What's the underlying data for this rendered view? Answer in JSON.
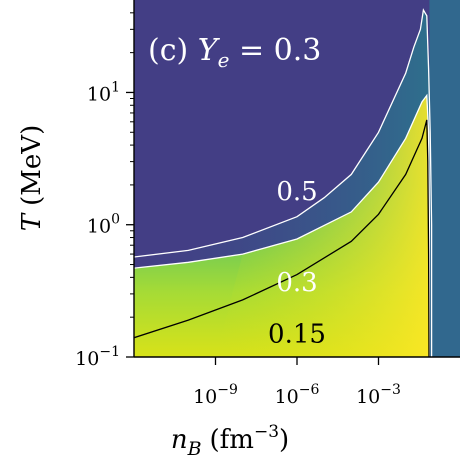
{
  "chart_data": {
    "type": "heatmap",
    "panel_label": "(c) Y_e = 0.3",
    "panel": {
      "prefix": "(c) ",
      "var": "Y",
      "sub": "e",
      "suffix": " = 0.3"
    },
    "xlabel": {
      "var": "n",
      "sub": "B",
      "unit": "(fm",
      "exp": "−3",
      "close": ")"
    },
    "ylabel": {
      "var": "T",
      "unit": "(MeV)"
    },
    "x_scale": "log",
    "y_scale": "log",
    "xlim": [
      1e-12,
      1.0
    ],
    "ylim": [
      0.1,
      50
    ],
    "xticks": [
      {
        "value": 1e-09,
        "base": "10",
        "exp": "−9"
      },
      {
        "value": 1e-06,
        "base": "10",
        "exp": "−6"
      },
      {
        "value": 0.001,
        "base": "10",
        "exp": "−3"
      }
    ],
    "yticks": [
      {
        "value": 0.1,
        "base": "10",
        "exp": "−1"
      },
      {
        "value": 1,
        "base": "10",
        "exp": "0"
      },
      {
        "value": 10,
        "base": "10",
        "exp": "1"
      }
    ],
    "colormap": "viridis",
    "contours": [
      {
        "level": 0.5,
        "label": "0.5",
        "color": "#ffffff",
        "label_at": [
          1e-06,
          1.8
        ],
        "points": [
          [
            1e-12,
            0.57
          ],
          [
            1e-10,
            0.64
          ],
          [
            1e-08,
            0.8
          ],
          [
            1e-06,
            1.15
          ],
          [
            1e-05,
            1.6
          ],
          [
            0.0001,
            2.4
          ],
          [
            0.001,
            5
          ],
          [
            0.01,
            14
          ],
          [
            0.02,
            22
          ],
          [
            0.035,
            30
          ],
          [
            0.045,
            42
          ],
          [
            0.06,
            38
          ],
          [
            0.07,
            15
          ],
          [
            0.08,
            5
          ],
          [
            0.09,
            1
          ],
          [
            0.09,
            0.1
          ]
        ]
      },
      {
        "level": 0.3,
        "label": "0.3",
        "color": "#ffffff",
        "label_at": [
          1e-06,
          0.37
        ],
        "points": [
          [
            1e-12,
            0.47
          ],
          [
            1e-10,
            0.52
          ],
          [
            1e-08,
            0.6
          ],
          [
            1e-06,
            0.78
          ],
          [
            0.0001,
            1.25
          ],
          [
            0.001,
            2.1
          ],
          [
            0.01,
            4.5
          ],
          [
            0.04,
            8.5
          ],
          [
            0.06,
            9.5
          ],
          [
            0.07,
            5
          ],
          [
            0.075,
            1
          ],
          [
            0.075,
            0.1
          ]
        ]
      },
      {
        "level": 0.15,
        "label": "0.15",
        "color": "#000000",
        "label_at": [
          1e-06,
          0.15
        ],
        "points": [
          [
            1e-12,
            0.14
          ],
          [
            1e-10,
            0.19
          ],
          [
            1e-08,
            0.27
          ],
          [
            1e-06,
            0.42
          ],
          [
            0.0001,
            0.75
          ],
          [
            0.001,
            1.2
          ],
          [
            0.01,
            2.4
          ],
          [
            0.04,
            4.5
          ],
          [
            0.06,
            6.2
          ],
          [
            0.065,
            3
          ],
          [
            0.07,
            0.6
          ],
          [
            0.072,
            0.1
          ]
        ]
      }
    ]
  }
}
